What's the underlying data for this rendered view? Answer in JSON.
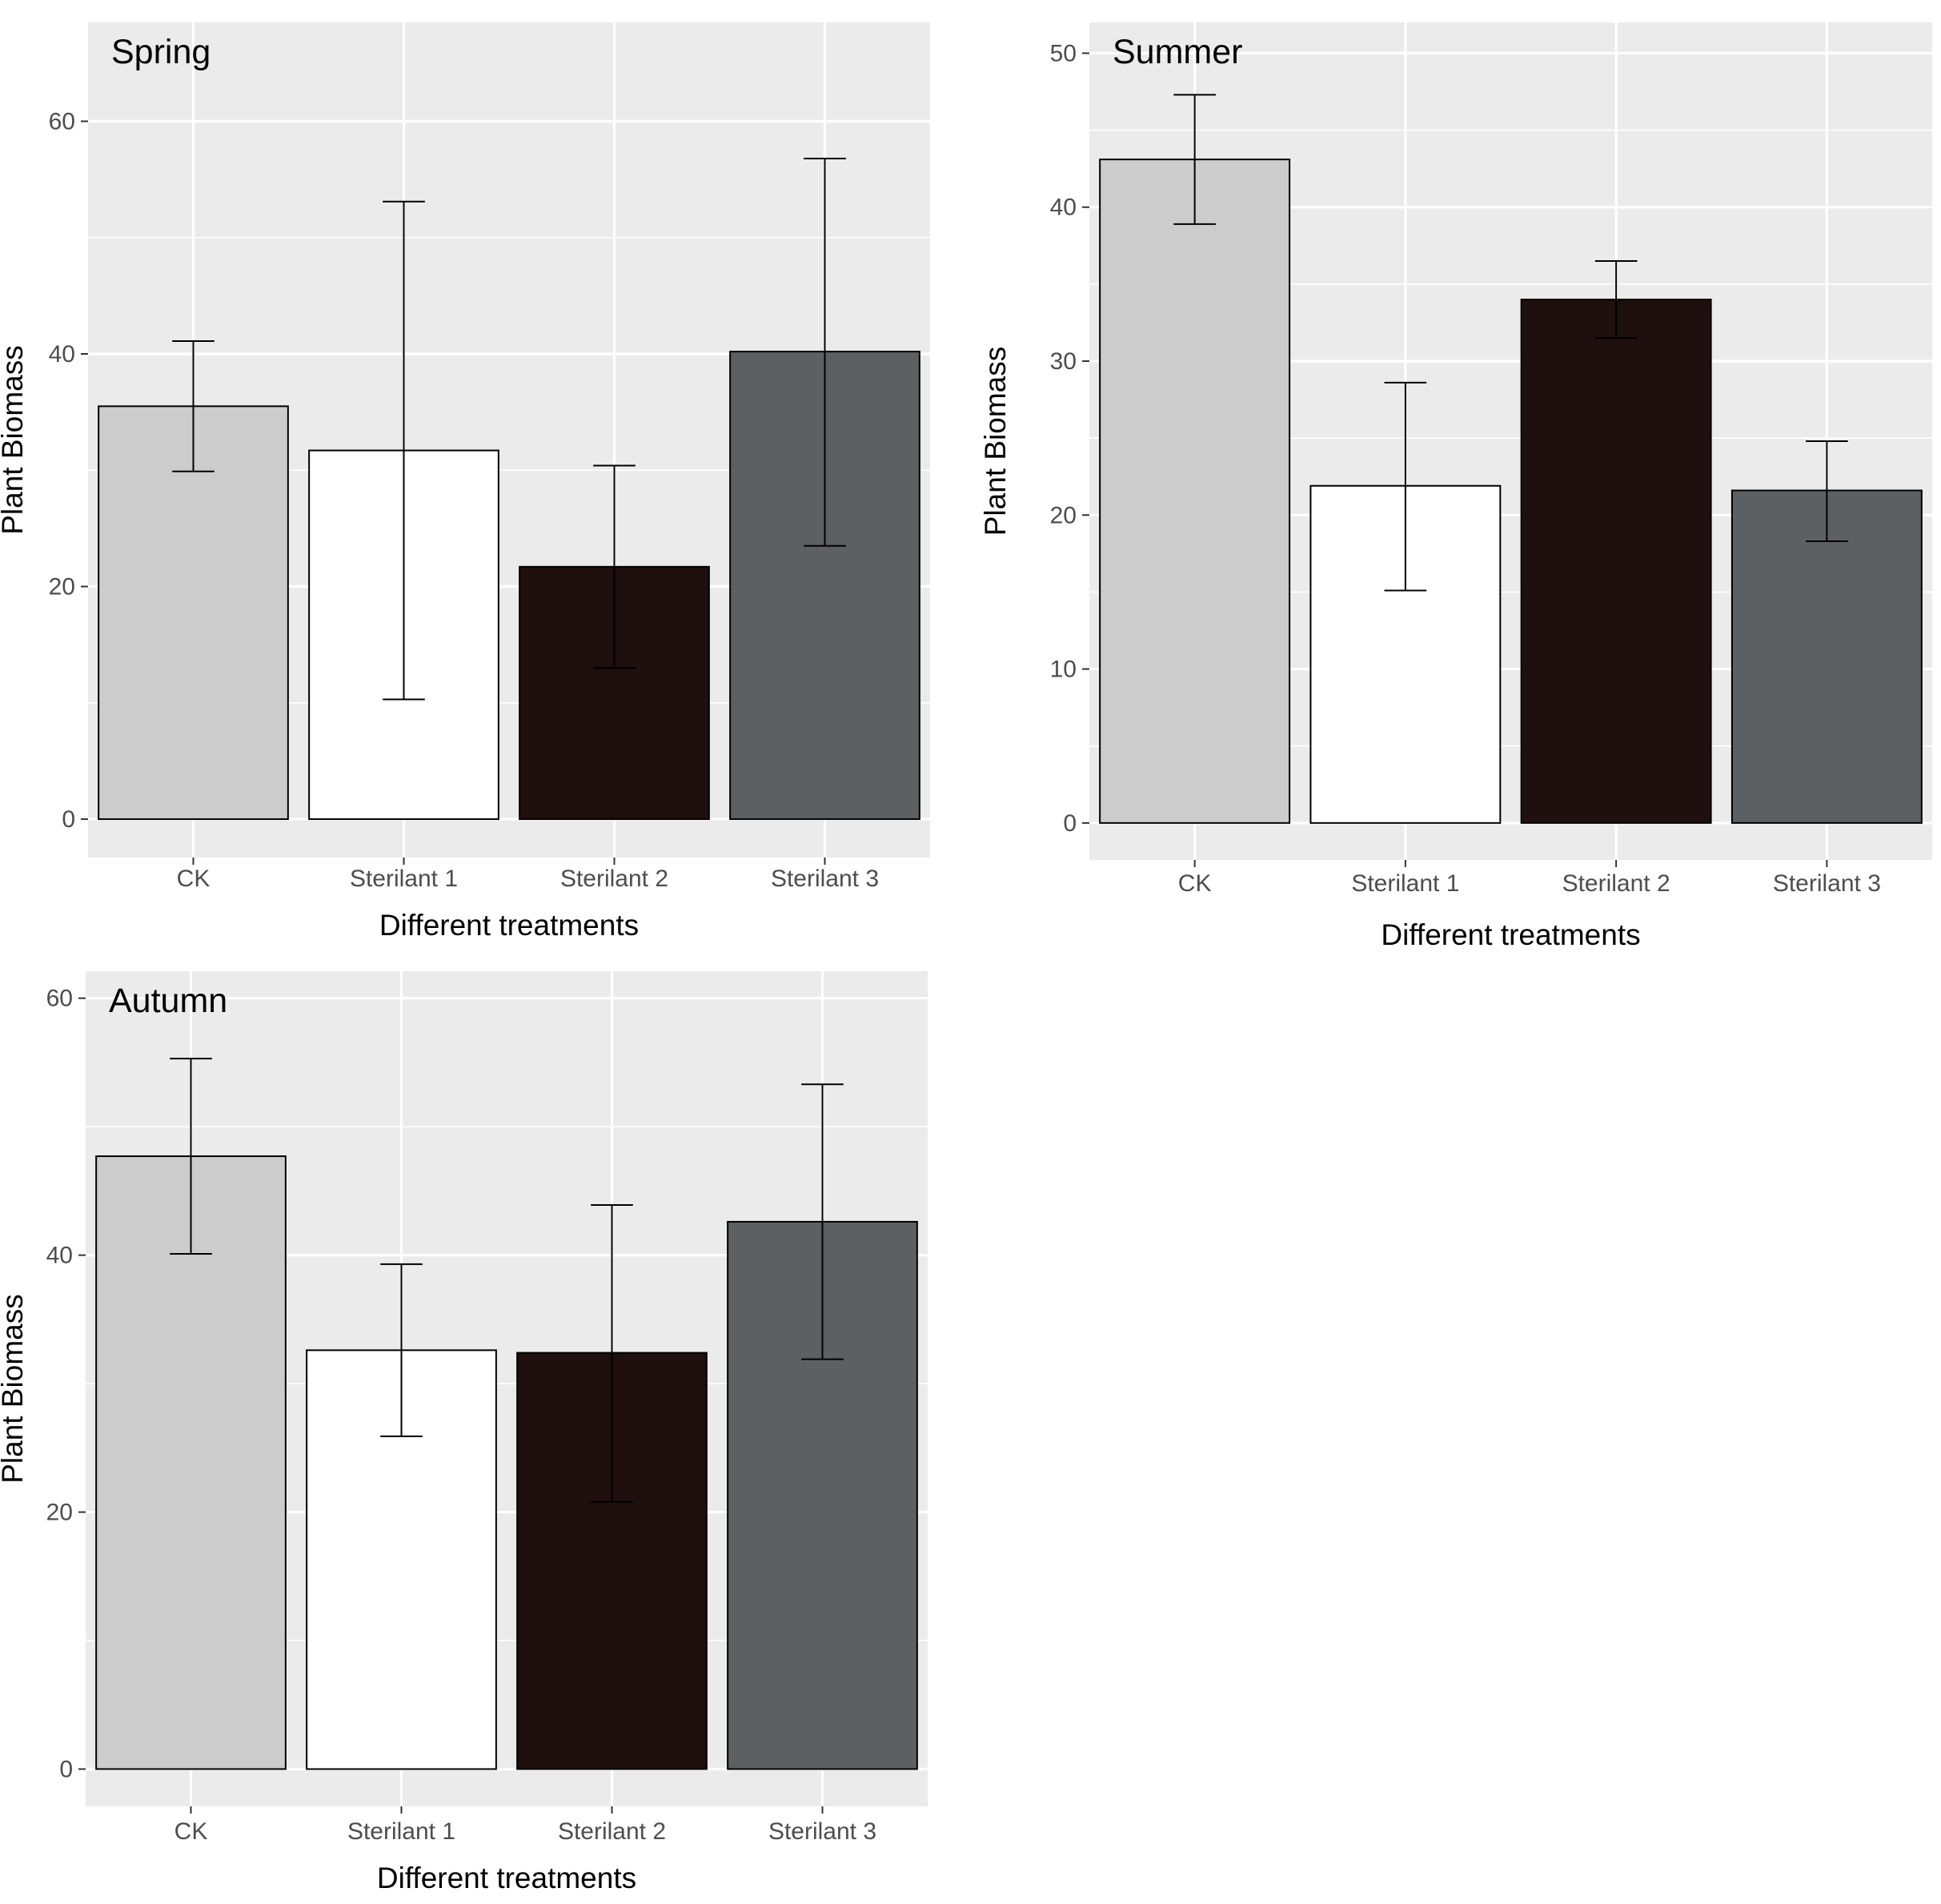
{
  "colors": {
    "panel_background": "#ebebeb",
    "gridline": "#ffffff",
    "bar_outline": "#000000",
    "tick_text": "#4d4d4d",
    "ck": "#cccccc",
    "sterilant_1": "#ffffff",
    "sterilant_2": "#1f0f0f",
    "sterilant_3": "#5c6063"
  },
  "chart_data": [
    {
      "type": "bar",
      "title": "Spring",
      "xlabel": "Different treatments",
      "ylabel": "Plant Biomass",
      "categories": [
        "CK",
        "Sterilant 1",
        "Sterilant 2",
        "Sterilant 3"
      ],
      "values": [
        35.5,
        31.7,
        21.7,
        40.2
      ],
      "error_low": [
        29.9,
        10.3,
        13.0,
        23.5
      ],
      "error_high": [
        41.1,
        53.1,
        30.4,
        56.8
      ],
      "ylim": [
        -3.3,
        68.5
      ],
      "yticks": [
        0,
        20,
        40,
        60
      ],
      "ytick_labels": [
        "0",
        "20",
        "40",
        "60"
      ],
      "grid": true,
      "legend": "none"
    },
    {
      "type": "bar",
      "title": "Summer",
      "xlabel": "Different treatments",
      "ylabel": "Plant Biomass",
      "categories": [
        "CK",
        "Sterilant 1",
        "Sterilant 2",
        "Sterilant 3"
      ],
      "values": [
        43.1,
        21.9,
        34.0,
        21.6
      ],
      "error_low": [
        38.9,
        15.1,
        31.5,
        18.3
      ],
      "error_high": [
        47.3,
        28.6,
        36.5,
        24.8
      ],
      "ylim": [
        -2.4,
        52.0
      ],
      "yticks": [
        0,
        10,
        20,
        30,
        40,
        50
      ],
      "ytick_labels": [
        "0",
        "10",
        "20",
        "30",
        "40",
        "50"
      ],
      "grid": true,
      "legend": "none"
    },
    {
      "type": "bar",
      "title": "Autumn",
      "xlabel": "Different treatments",
      "ylabel": "Plant Biomass",
      "categories": [
        "CK",
        "Sterilant 1",
        "Sterilant 2",
        "Sterilant 3"
      ],
      "values": [
        47.7,
        32.6,
        32.4,
        42.6
      ],
      "error_low": [
        40.1,
        25.9,
        20.8,
        31.9
      ],
      "error_high": [
        55.3,
        39.3,
        43.9,
        53.3
      ],
      "ylim": [
        -2.9,
        62.1
      ],
      "yticks": [
        0,
        20,
        40,
        60
      ],
      "ytick_labels": [
        "0",
        "20",
        "40",
        "60"
      ],
      "grid": true,
      "legend": "none"
    }
  ]
}
